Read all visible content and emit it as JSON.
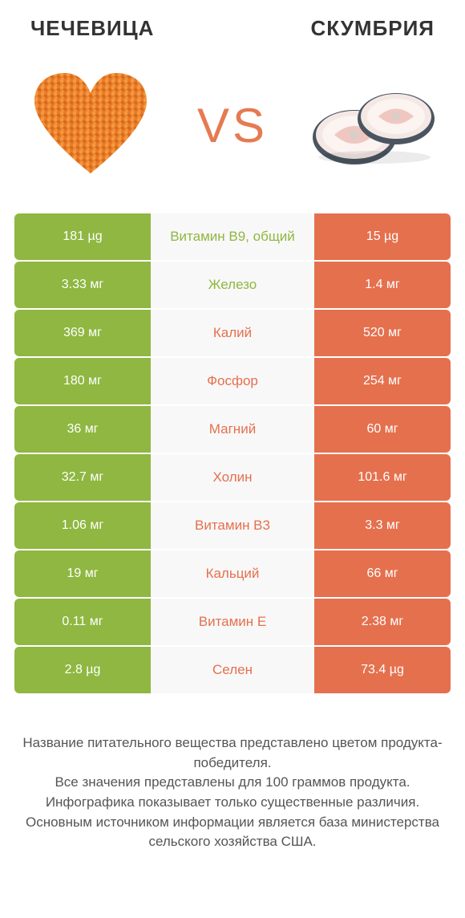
{
  "colors": {
    "left": "#8fb741",
    "right": "#e5704e",
    "mid_bg": "#f8f8f8",
    "mid_text_left": "#8fb741",
    "mid_text_right": "#e5704e",
    "vs": "#e5704e"
  },
  "titles": {
    "left": "ЧЕЧЕВИЦА",
    "right": "СКУМБРИЯ",
    "vs": "VS"
  },
  "rows": [
    {
      "left": "181 µg",
      "label": "Витамин B9, общий",
      "right": "15 µg",
      "winner": "left"
    },
    {
      "left": "3.33 мг",
      "label": "Железо",
      "right": "1.4 мг",
      "winner": "left"
    },
    {
      "left": "369 мг",
      "label": "Калий",
      "right": "520 мг",
      "winner": "right"
    },
    {
      "left": "180 мг",
      "label": "Фосфор",
      "right": "254 мг",
      "winner": "right"
    },
    {
      "left": "36 мг",
      "label": "Магний",
      "right": "60 мг",
      "winner": "right"
    },
    {
      "left": "32.7 мг",
      "label": "Холин",
      "right": "101.6 мг",
      "winner": "right"
    },
    {
      "left": "1.06 мг",
      "label": "Витамин B3",
      "right": "3.3 мг",
      "winner": "right"
    },
    {
      "left": "19 мг",
      "label": "Кальций",
      "right": "66 мг",
      "winner": "right"
    },
    {
      "left": "0.11 мг",
      "label": "Витамин E",
      "right": "2.38 мг",
      "winner": "right"
    },
    {
      "left": "2.8 µg",
      "label": "Селен",
      "right": "73.4 µg",
      "winner": "right"
    }
  ],
  "footer": [
    "Название питательного вещества представлено цветом продукта-победителя.",
    "Все значения представлены для 100 граммов продукта.",
    "Инфографика показывает только существенные различия.",
    "Основным источником информации является база министерства сельского хозяйства США."
  ]
}
